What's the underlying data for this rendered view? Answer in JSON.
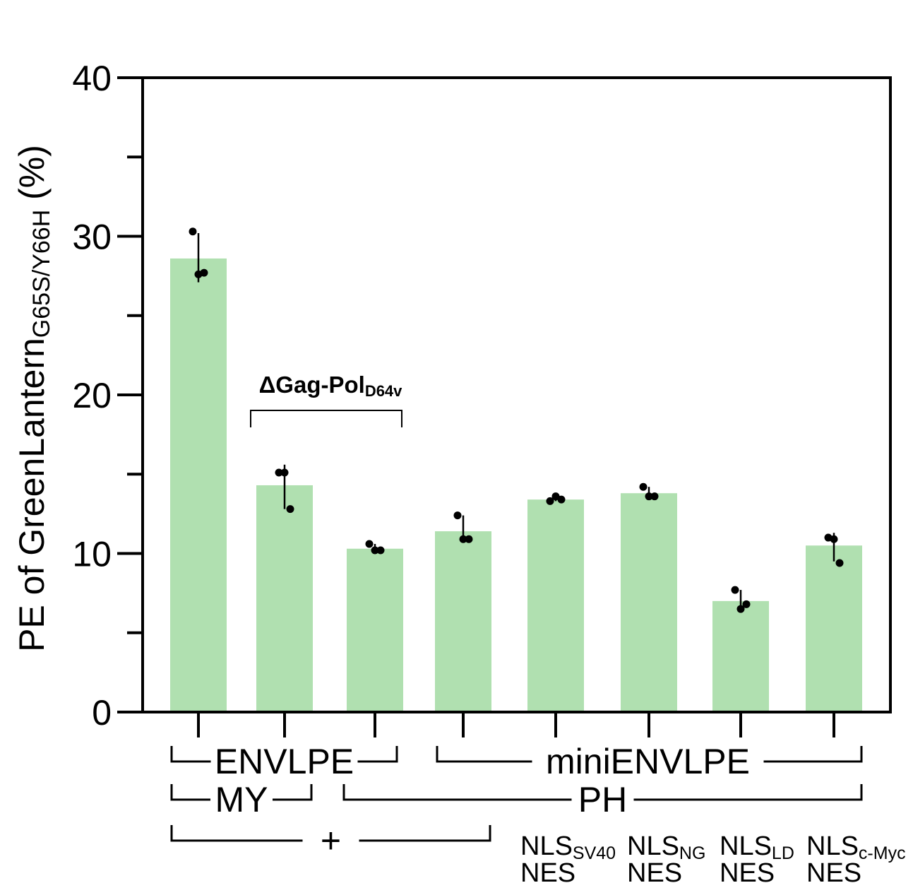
{
  "chart_data": {
    "type": "bar",
    "ylabel": {
      "main": "PE of GreenLantern",
      "sub": "G65S/Y66H",
      "suffix": " (%)"
    },
    "ylim": [
      0,
      40
    ],
    "yticks": [
      "0",
      "10",
      "20",
      "30",
      "40"
    ],
    "yminor": [
      5,
      15,
      25,
      35
    ],
    "bar_color": "#b0e0b0",
    "values": [
      28.6,
      14.3,
      10.3,
      11.4,
      13.4,
      13.8,
      7.0,
      10.5
    ],
    "errors": [
      [
        27.1,
        30.2
      ],
      [
        12.8,
        15.6
      ],
      [
        10.1,
        10.6
      ],
      [
        10.9,
        12.4
      ],
      [
        13.3,
        13.6
      ],
      [
        13.5,
        14.2
      ],
      [
        6.5,
        7.7
      ],
      [
        9.5,
        11.3
      ]
    ],
    "points": [
      [
        30.3,
        27.6,
        27.7
      ],
      [
        15.1,
        15.1,
        12.8
      ],
      [
        10.6,
        10.2,
        10.2
      ],
      [
        12.4,
        10.9,
        10.9
      ],
      [
        13.3,
        13.6,
        13.4
      ],
      [
        14.2,
        13.6,
        13.6
      ],
      [
        7.7,
        6.5,
        6.8
      ],
      [
        11.0,
        10.9,
        9.4
      ]
    ],
    "annotation": {
      "main": "ΔGag-Pol",
      "sub": "D64v",
      "from_bar": 1,
      "to_bar": 2
    },
    "group_rows": [
      [
        {
          "label": "ENVLPE",
          "from": 0,
          "to": 2
        },
        {
          "label": "miniENVLPE",
          "from": 3,
          "to": 7
        }
      ],
      [
        {
          "label": "MY",
          "from": 0,
          "to": 1
        },
        {
          "label": "PH",
          "from": 2,
          "to": 7
        }
      ],
      [
        {
          "label": "+",
          "from": 0,
          "to": 3
        }
      ]
    ],
    "bottom_labels": [
      {
        "bar": 4,
        "main": "NLS",
        "sub": "SV40",
        "line2": "NES"
      },
      {
        "bar": 5,
        "main": "NLS",
        "sub": "NG",
        "line2": "NES"
      },
      {
        "bar": 6,
        "main": "NLS",
        "sub": "LD",
        "line2": "NES"
      },
      {
        "bar": 7,
        "main": "NLS",
        "sub": "c-Myc",
        "line2": "NES"
      }
    ]
  }
}
